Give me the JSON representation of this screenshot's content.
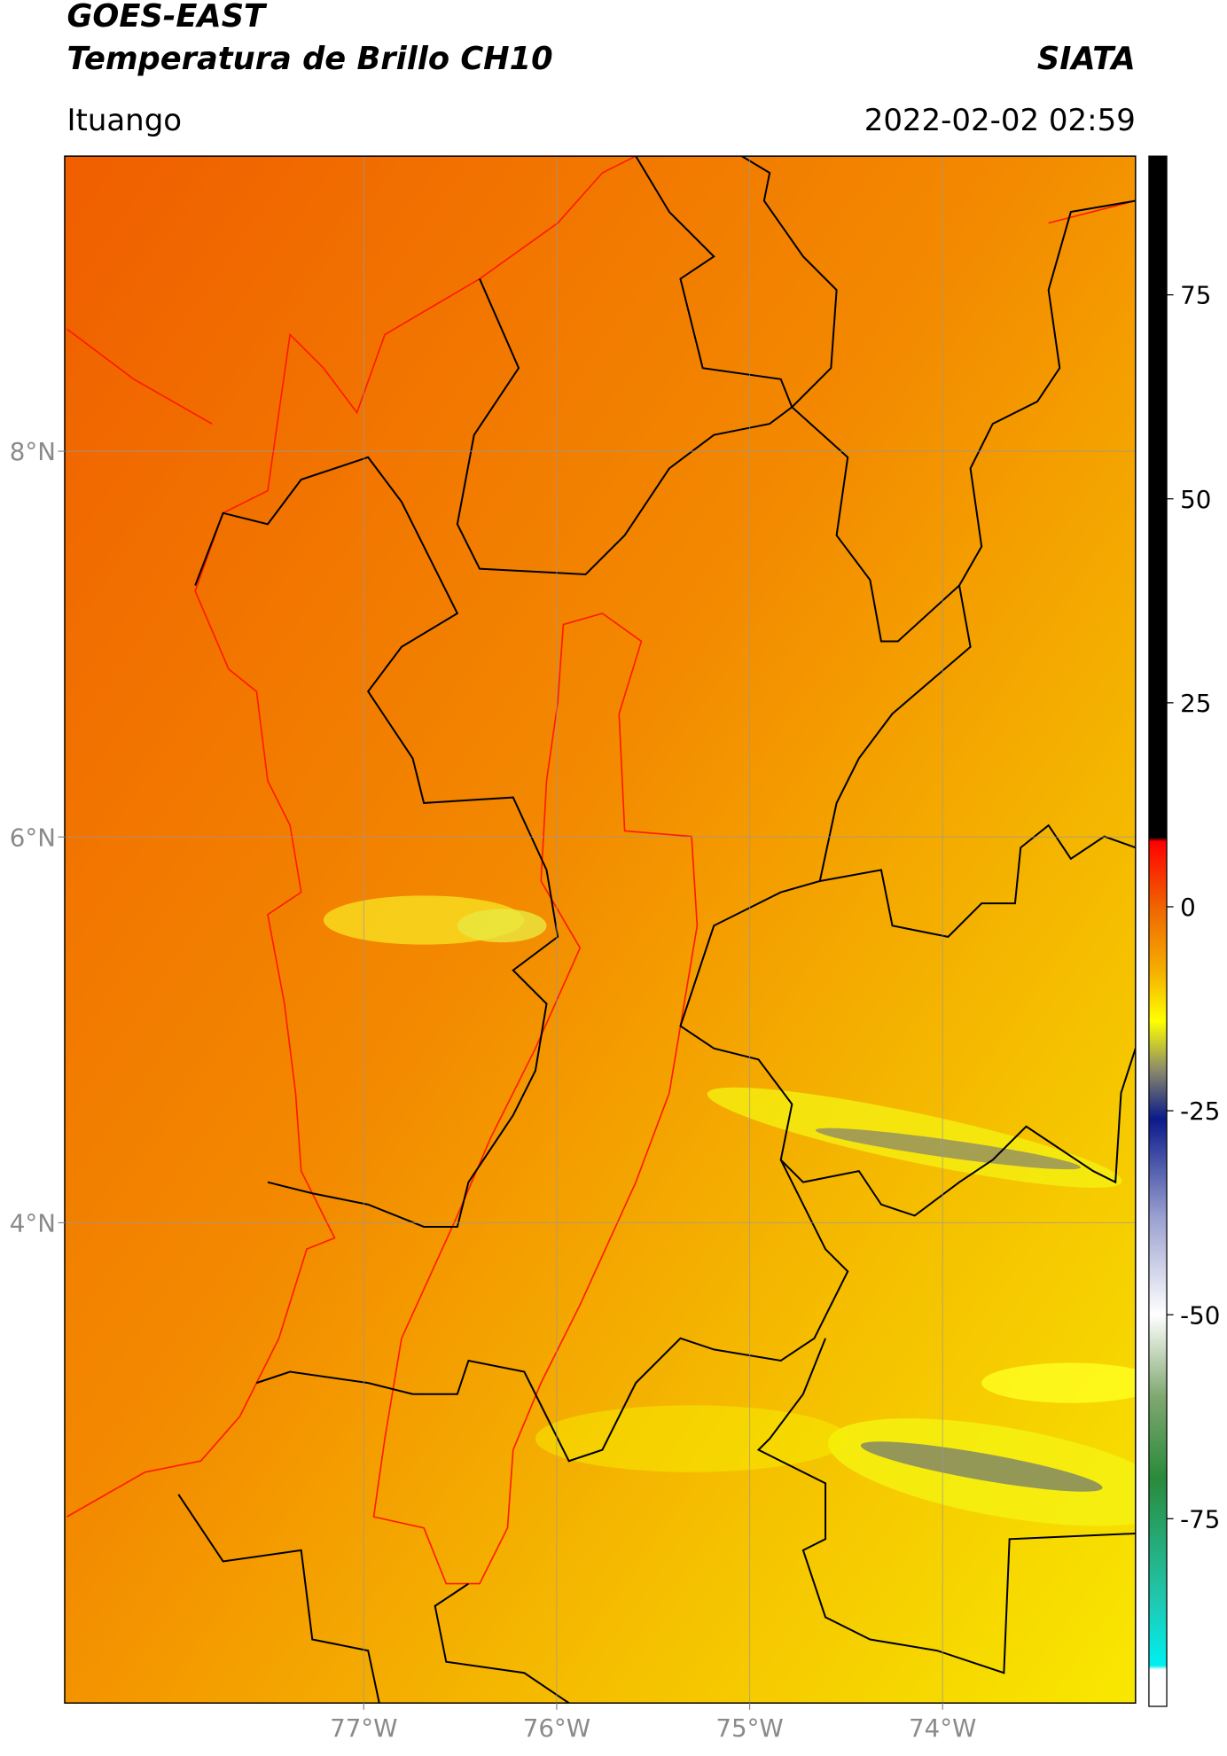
{
  "header": {
    "title": "GOES-EAST",
    "subtitle": "Temperatura de Brillo CH10",
    "source": "SIATA",
    "region": "Ituango",
    "datetime": "2022-02-02 02:59"
  },
  "map": {
    "xlim": [
      -78.55,
      -73.0
    ],
    "ylim": [
      1.51,
      9.53
    ],
    "xticks": [
      {
        "value": -77,
        "label": "77°W"
      },
      {
        "value": -76,
        "label": "76°W"
      },
      {
        "value": -75,
        "label": "75°W"
      },
      {
        "value": -74,
        "label": "74°W"
      }
    ],
    "yticks": [
      {
        "value": 8,
        "label": "8°N"
      },
      {
        "value": 6,
        "label": "6°N"
      },
      {
        "value": 4,
        "label": "4°N"
      }
    ],
    "grid": true
  },
  "colorbar": {
    "lim": [
      -98,
      92
    ],
    "ticks": [
      75,
      50,
      25,
      0,
      -25,
      -50,
      -75
    ],
    "colors": [
      {
        "value": 92,
        "color": "#000000"
      },
      {
        "value": 8.5,
        "color": "#000000"
      },
      {
        "value": 8,
        "color": "#ff0000"
      },
      {
        "value": 0,
        "color": "#f06400"
      },
      {
        "value": -8,
        "color": "#f5b000"
      },
      {
        "value": -14,
        "color": "#ffff00"
      },
      {
        "value": -20,
        "color": "#8a8a6a"
      },
      {
        "value": -26,
        "color": "#0a1a8a"
      },
      {
        "value": -38,
        "color": "#9aa0d0"
      },
      {
        "value": -50,
        "color": "#ffffff"
      },
      {
        "value": -60,
        "color": "#80a870"
      },
      {
        "value": -70,
        "color": "#2a8a3a"
      },
      {
        "value": -85,
        "color": "#20c8b0"
      },
      {
        "value": -93,
        "color": "#00f0f0"
      },
      {
        "value": -93.5,
        "color": "#ffffff"
      },
      {
        "value": -98,
        "color": "#ffffff"
      }
    ]
  }
}
